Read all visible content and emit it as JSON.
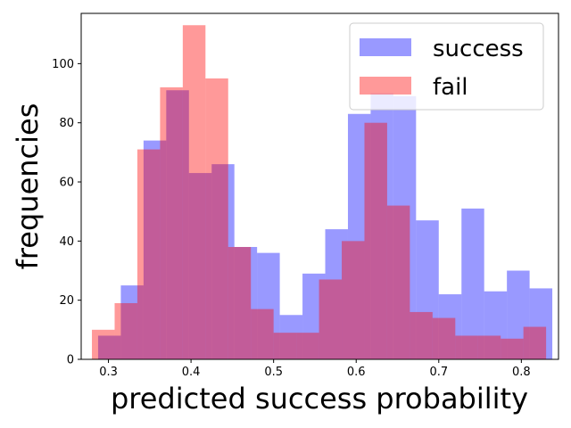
{
  "chart_data": {
    "type": "histogram",
    "xlabel": "predicted success probability",
    "ylabel": "frequencies",
    "xlim": [
      0.267,
      0.845
    ],
    "ylim": [
      0,
      117
    ],
    "xticks": [
      0.3,
      0.4,
      0.5,
      0.6,
      0.7,
      0.8
    ],
    "xtick_labels": [
      "0.3",
      "0.4",
      "0.5",
      "0.6",
      "0.7",
      "0.8"
    ],
    "yticks": [
      0,
      20,
      40,
      60,
      80,
      100
    ],
    "ytick_labels": [
      "0",
      "20",
      "40",
      "60",
      "80",
      "100"
    ],
    "legend_position": "top-right",
    "series": [
      {
        "name": "success",
        "color": "#0000ff",
        "alpha": 0.4,
        "bin_edges": [
          0.2875,
          0.315,
          0.3425,
          0.37,
          0.3975,
          0.425,
          0.4525,
          0.48,
          0.5075,
          0.535,
          0.5625,
          0.59,
          0.6175,
          0.645,
          0.6725,
          0.7,
          0.7275,
          0.755,
          0.7825,
          0.81,
          0.8375
        ],
        "values": [
          8,
          25,
          74,
          91,
          63,
          66,
          38,
          36,
          15,
          29,
          44,
          83,
          90,
          89,
          47,
          22,
          51,
          23,
          30,
          24
        ]
      },
      {
        "name": "fail",
        "color": "#ff0000",
        "alpha": 0.4,
        "bin_edges": [
          0.28,
          0.3075,
          0.335,
          0.3625,
          0.39,
          0.4175,
          0.445,
          0.4725,
          0.5,
          0.5275,
          0.555,
          0.5825,
          0.61,
          0.6375,
          0.665,
          0.6925,
          0.72,
          0.7475,
          0.775,
          0.8025,
          0.83
        ],
        "values": [
          10,
          19,
          71,
          92,
          113,
          95,
          38,
          17,
          9,
          9,
          27,
          40,
          80,
          52,
          16,
          14,
          8,
          8,
          7,
          11
        ]
      }
    ]
  }
}
